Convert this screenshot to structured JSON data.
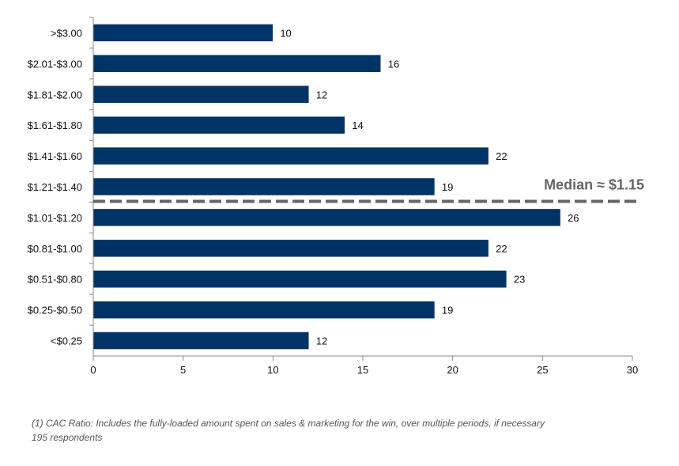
{
  "chart_data": {
    "type": "bar",
    "orientation": "horizontal",
    "categories": [
      "<$0.25",
      "$0.25-$0.50",
      "$0.51-$0.80",
      "$0.81-$1.00",
      "$1.01-$1.20",
      "$1.21-$1.40",
      "$1.41-$1.60",
      "$1.61-$1.80",
      "$1.81-$2.00",
      "$2.01-$3.00",
      ">$3.00"
    ],
    "values": [
      12,
      19,
      23,
      22,
      26,
      19,
      22,
      14,
      12,
      16,
      10
    ],
    "xlim": [
      0,
      30
    ],
    "xticks": [
      0,
      5,
      10,
      15,
      20,
      25,
      30
    ],
    "bar_color": "#003366",
    "grid": false,
    "annotation": {
      "text": "Median ≈ $1.15",
      "color": "#666666"
    }
  },
  "footnote": {
    "line1": "(1)    CAC Ratio: Includes the fully-loaded amount spent on sales & marketing for the win, over multiple periods, if necessary",
    "line2": "195 respondents"
  }
}
